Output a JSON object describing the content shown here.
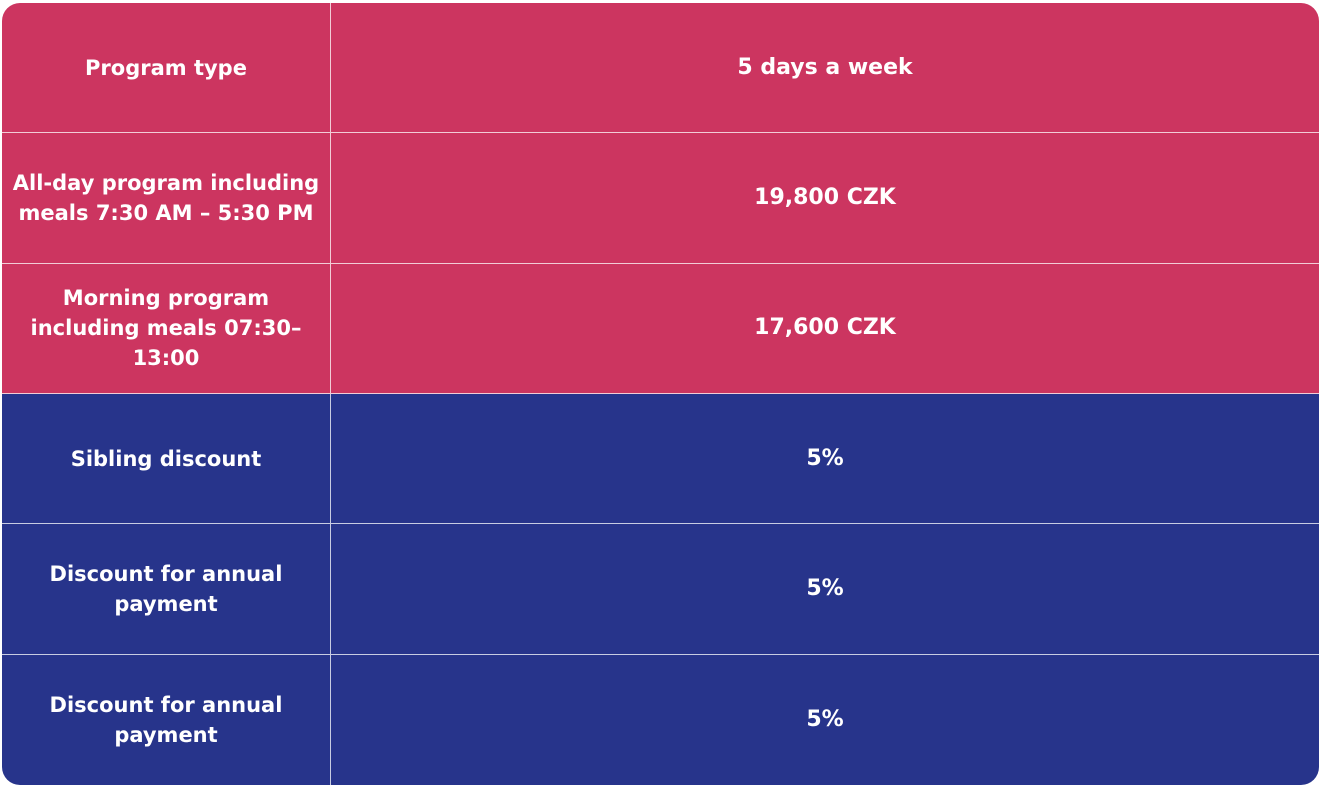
{
  "table": {
    "colors": {
      "pink": "#cc3560",
      "navy": "#27348b"
    },
    "rows": [
      {
        "label": "Program type",
        "value": "5 days a week"
      },
      {
        "label": "All-day program including meals 7:30 AM – 5:30 PM",
        "value": "19,800 CZK"
      },
      {
        "label": "Morning program including meals 07:30–13:00",
        "value": "17,600 CZK"
      },
      {
        "label": "Sibling discount",
        "value": "5%"
      },
      {
        "label": "Discount for annual payment",
        "value": "5%"
      },
      {
        "label": "Discount for annual payment",
        "value": "5%"
      }
    ]
  }
}
